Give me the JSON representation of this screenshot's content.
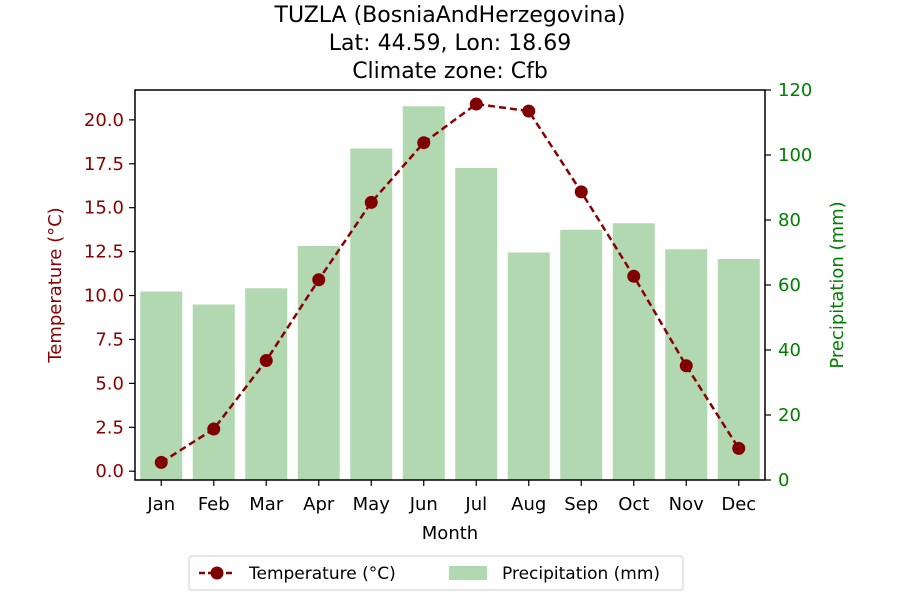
{
  "chart_data": {
    "type": "bar+line",
    "title_lines": [
      "TUZLA (BosniaAndHerzegovina)",
      "Lat: 44.59, Lon: 18.69",
      "Climate zone: Cfb"
    ],
    "xlabel": "Month",
    "ylabel_left": "Temperature (°C)",
    "ylabel_right": "Precipitation (mm)",
    "categories": [
      "Jan",
      "Feb",
      "Mar",
      "Apr",
      "May",
      "Jun",
      "Jul",
      "Aug",
      "Sep",
      "Oct",
      "Nov",
      "Dec"
    ],
    "temperature": [
      0.5,
      2.4,
      6.3,
      10.9,
      15.3,
      18.7,
      20.9,
      20.5,
      15.9,
      11.1,
      6.0,
      1.3
    ],
    "precipitation": [
      58,
      54,
      59,
      72,
      102,
      115,
      96,
      70,
      77,
      79,
      71,
      68
    ],
    "ylim_left": [
      -0.5,
      21.7
    ],
    "ylim_right": [
      0,
      120
    ],
    "yticks_left": [
      0.0,
      2.5,
      5.0,
      7.5,
      10.0,
      12.5,
      15.0,
      17.5,
      20.0
    ],
    "yticks_left_labels": [
      "0.0",
      "2.5",
      "5.0",
      "7.5",
      "10.0",
      "12.5",
      "15.0",
      "17.5",
      "20.0"
    ],
    "yticks_right": [
      0,
      20,
      40,
      60,
      80,
      100,
      120
    ],
    "yticks_right_labels": [
      "0",
      "20",
      "40",
      "60",
      "80",
      "100",
      "120"
    ],
    "legend": [
      "Temperature (°C)",
      "Precipitation (mm)"
    ],
    "legend_position": "bottom-center",
    "colors": {
      "temperature_line": "#8b0000",
      "temperature_marker": "#800000",
      "temperature_axis": "#8b0000",
      "precipitation_bar": "#b2d8b2",
      "precipitation_axis": "#008000"
    }
  }
}
